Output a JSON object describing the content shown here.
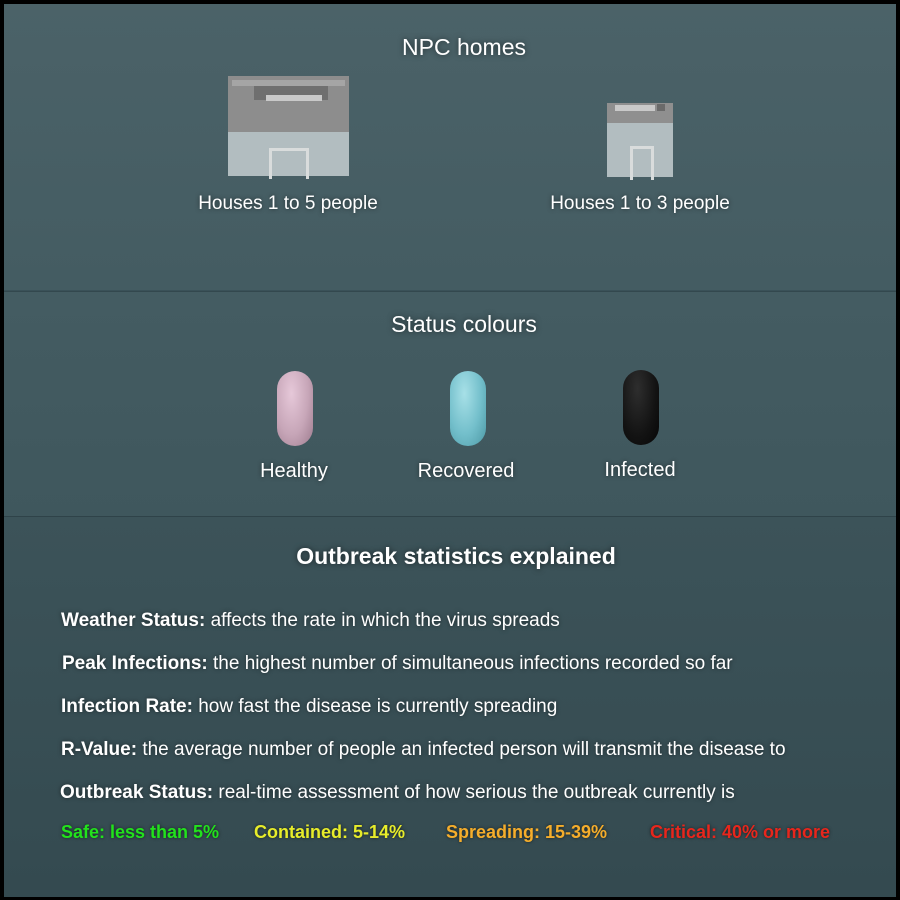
{
  "homes": {
    "title": "NPC homes",
    "items": [
      {
        "caption": "Houses 1 to 5 people"
      },
      {
        "caption": "Houses 1 to 3 people"
      }
    ]
  },
  "status": {
    "title": "Status colours",
    "items": [
      {
        "label": "Healthy",
        "color": "#c7a6b8"
      },
      {
        "label": "Recovered",
        "color": "#73bfcb"
      },
      {
        "label": "Infected",
        "color": "#131313"
      }
    ]
  },
  "stats": {
    "title": "Outbreak statistics explained",
    "items": [
      {
        "term": "Weather Status:",
        "desc": "affects the rate in which the virus spreads"
      },
      {
        "term": "Peak Infections:",
        "desc": "the highest number of simultaneous infections recorded so far"
      },
      {
        "term": "Infection Rate:",
        "desc": "how fast the disease is currently spreading"
      },
      {
        "term": "R-Value:",
        "desc": "the average number of people an infected person will transmit the disease to"
      },
      {
        "term": "Outbreak Status:",
        "desc": "real-time assessment of how serious the outbreak currently is"
      }
    ],
    "legend": [
      {
        "label": "Safe: less than 5%",
        "color": "#22e21c"
      },
      {
        "label": "Contained: 5-14%",
        "color": "#e7ec2a"
      },
      {
        "label": "Spreading: 15-39%",
        "color": "#f5ad2b"
      },
      {
        "label": "Critical: 40% or more",
        "color": "#e8261c"
      }
    ]
  }
}
